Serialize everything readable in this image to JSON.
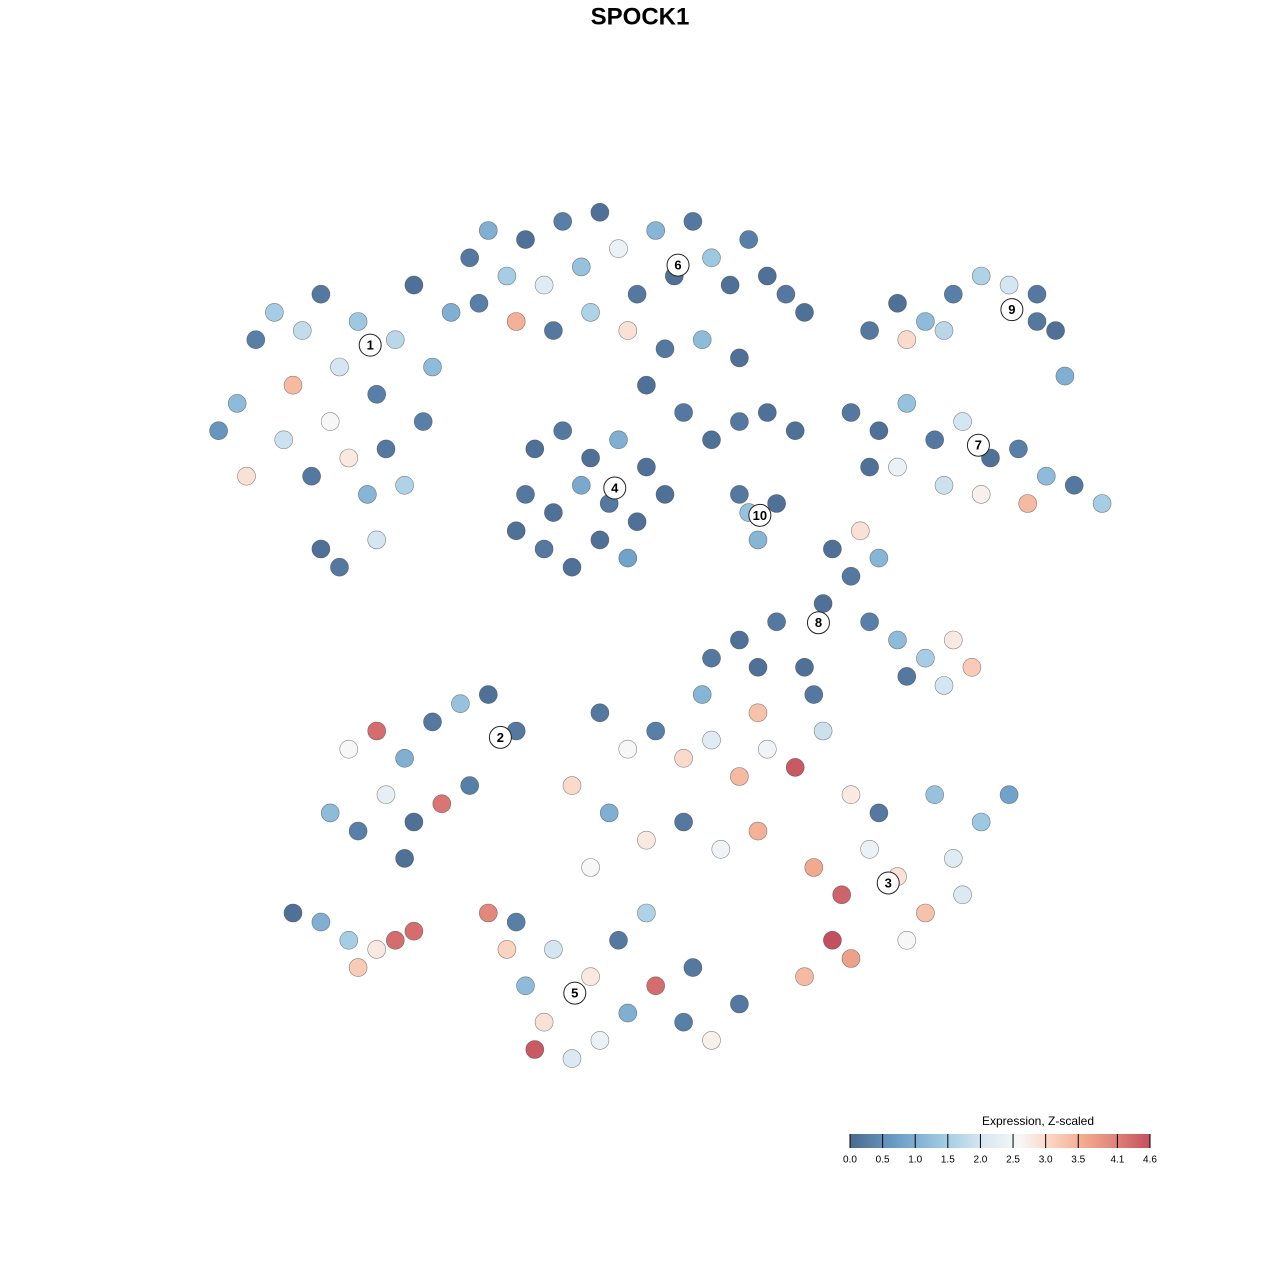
{
  "chart_data": {
    "type": "scatter",
    "title": "SPOCK1",
    "xlim": [
      0,
      100
    ],
    "ylim": [
      0,
      100
    ],
    "x": [
      4,
      2,
      6,
      8,
      11,
      13,
      15,
      17,
      19,
      21,
      23,
      25,
      14,
      16,
      18,
      12,
      20,
      22,
      13,
      15,
      19,
      10,
      27,
      24,
      9,
      5,
      29,
      31,
      33,
      35,
      37,
      39,
      41,
      43,
      45,
      47,
      49,
      51,
      53,
      55,
      57,
      59,
      61,
      63,
      65,
      30,
      34,
      38,
      42,
      46,
      50,
      54,
      58,
      48,
      52,
      36,
      39,
      42,
      45,
      48,
      35,
      38,
      41,
      44,
      47,
      37,
      40,
      43,
      46,
      50,
      34,
      55,
      58,
      61,
      64,
      58,
      60,
      62,
      59,
      72,
      75,
      78,
      81,
      84,
      87,
      90,
      92,
      93,
      90,
      76,
      80,
      70,
      73,
      76,
      79,
      82,
      85,
      88,
      91,
      94,
      97,
      75,
      80,
      84,
      89,
      72,
      68,
      70,
      67,
      62,
      58,
      72,
      75,
      78,
      81,
      83,
      80,
      76,
      71,
      73,
      60,
      55,
      65,
      16,
      19,
      22,
      25,
      28,
      31,
      34,
      14,
      17,
      20,
      23,
      26,
      22,
      29,
      10,
      13,
      16,
      19,
      21,
      23,
      17,
      43,
      46,
      49,
      52,
      55,
      58,
      61,
      64,
      67,
      70,
      40,
      44,
      48,
      52,
      56,
      60,
      54,
      60,
      66,
      42,
      66,
      69,
      72,
      75,
      78,
      81,
      84,
      87,
      79,
      73,
      68,
      65,
      70,
      76,
      82,
      31,
      33,
      35,
      37,
      40,
      43,
      46,
      49,
      52,
      55,
      58,
      38,
      42,
      45,
      48,
      36,
      53,
      34
    ],
    "y": [
      76,
      73,
      83,
      86,
      84,
      88,
      80,
      85,
      77,
      83,
      89,
      80,
      74,
      70,
      66,
      68,
      71,
      67,
      60,
      58,
      61,
      78,
      86,
      74,
      72,
      68,
      92,
      95,
      90,
      94,
      89,
      96,
      91,
      97,
      93,
      88,
      95,
      90,
      96,
      92,
      89,
      94,
      90,
      88,
      86,
      87,
      85,
      84,
      86,
      84,
      82,
      83,
      81,
      78,
      75,
      71,
      73,
      70,
      72,
      69,
      66,
      64,
      67,
      65,
      63,
      60,
      58,
      61,
      59,
      66,
      62,
      72,
      74,
      75,
      73,
      66,
      61,
      65,
      64,
      84,
      87,
      85,
      88,
      90,
      89,
      88,
      84,
      79,
      85,
      83,
      84,
      75,
      73,
      76,
      72,
      74,
      70,
      71,
      68,
      67,
      65,
      69,
      67,
      66,
      65,
      69,
      60,
      57,
      54,
      52,
      50,
      52,
      50,
      48,
      50,
      47,
      45,
      46,
      62,
      59,
      47,
      48,
      47,
      38,
      40,
      37,
      41,
      43,
      44,
      40,
      31,
      29,
      33,
      30,
      32,
      26,
      34,
      20,
      19,
      17,
      16,
      17,
      18,
      14,
      42,
      38,
      40,
      37,
      39,
      35,
      38,
      36,
      40,
      33,
      34,
      31,
      28,
      30,
      27,
      29,
      44,
      42,
      44,
      25,
      25,
      22,
      27,
      24,
      20,
      26,
      30,
      33,
      33,
      31,
      17,
      13,
      15,
      17,
      22,
      20,
      16,
      12,
      8,
      4,
      6,
      9,
      12,
      8,
      6,
      10,
      16,
      13,
      17,
      20,
      5,
      14,
      19
    ],
    "values": [
      1.2,
      0.6,
      0.3,
      1.5,
      1.8,
      0.2,
      2.0,
      1.4,
      0.3,
      1.7,
      0.1,
      1.2,
      2.6,
      2.8,
      1.1,
      0.2,
      0.2,
      1.6,
      0.1,
      0.2,
      2.0,
      3.4,
      1.0,
      0.3,
      1.9,
      2.9,
      0.2,
      1.0,
      1.5,
      0.1,
      2.2,
      0.3,
      1.3,
      0.1,
      2.4,
      0.2,
      1.1,
      0.1,
      0.2,
      1.4,
      0.1,
      0.3,
      0.1,
      0.2,
      0.1,
      0.3,
      3.5,
      0.2,
      1.6,
      2.9,
      0.2,
      1.2,
      0.1,
      0.1,
      0.2,
      0.1,
      0.2,
      0.1,
      1.0,
      0.1,
      0.2,
      0.1,
      0.9,
      0.2,
      0.1,
      0.2,
      0.1,
      0.1,
      0.8,
      0.1,
      0.1,
      0.1,
      0.2,
      0.1,
      0.1,
      0.2,
      1.1,
      0.1,
      1.3,
      0.2,
      0.1,
      1.2,
      0.3,
      1.6,
      2.0,
      0.2,
      0.1,
      1.0,
      0.2,
      3.0,
      1.7,
      0.2,
      0.1,
      1.3,
      0.2,
      2.0,
      0.1,
      0.3,
      1.2,
      0.2,
      1.5,
      2.4,
      1.9,
      2.7,
      3.4,
      0.1,
      0.1,
      0.2,
      0.1,
      0.2,
      0.1,
      0.3,
      1.2,
      1.5,
      2.8,
      3.2,
      2.0,
      0.2,
      2.9,
      1.1,
      0.1,
      0.2,
      0.1,
      2.6,
      4.3,
      1.0,
      0.2,
      1.3,
      0.1,
      0.2,
      1.2,
      0.3,
      2.3,
      0.1,
      4.2,
      0.1,
      0.3,
      0.1,
      1.0,
      1.5,
      2.8,
      4.3,
      4.3,
      3.2,
      0.2,
      2.6,
      0.3,
      3.0,
      2.2,
      3.4,
      2.5,
      4.5,
      1.9,
      2.8,
      3.0,
      1.0,
      2.8,
      0.2,
      2.5,
      3.5,
      1.1,
      3.3,
      0.2,
      2.6,
      3.6,
      4.4,
      2.4,
      2.9,
      3.3,
      2.2,
      1.4,
      0.8,
      1.3,
      0.2,
      4.6,
      3.4,
      3.7,
      2.6,
      2.1,
      4.0,
      3.1,
      1.2,
      2.9,
      2.1,
      2.4,
      1.0,
      4.3,
      0.3,
      2.7,
      0.2,
      2.0,
      2.8,
      0.2,
      1.6,
      4.5,
      0.2,
      0.3
    ],
    "cluster_labels": [
      {
        "text": "1",
        "x": 18.3,
        "y": 82.4
      },
      {
        "text": "2",
        "x": 32.3,
        "y": 39.3
      },
      {
        "text": "3",
        "x": 74.0,
        "y": 23.3
      },
      {
        "text": "4",
        "x": 44.6,
        "y": 66.7
      },
      {
        "text": "5",
        "x": 40.3,
        "y": 11.2
      },
      {
        "text": "6",
        "x": 51.4,
        "y": 91.2
      },
      {
        "text": "7",
        "x": 83.7,
        "y": 71.4
      },
      {
        "text": "8",
        "x": 66.5,
        "y": 51.9
      },
      {
        "text": "9",
        "x": 87.3,
        "y": 86.3
      },
      {
        "text": "10",
        "x": 60.2,
        "y": 63.7
      }
    ],
    "colorbar_title": "Expression, Z-scaled",
    "clim": [
      0,
      4.6
    ],
    "colorscale": [
      [
        0,
        "#4b6a8f"
      ],
      [
        0.7,
        "#6a9cc6"
      ],
      [
        1.4,
        "#9dc8e1"
      ],
      [
        2.0,
        "#d4e6f1"
      ],
      [
        2.6,
        "#f7f7f7"
      ],
      [
        3.1,
        "#fbd3c0"
      ],
      [
        3.6,
        "#f2a98e"
      ],
      [
        4.1,
        "#de8078"
      ],
      [
        4.6,
        "#c4505f"
      ]
    ],
    "cticks": [
      {
        "value": 0,
        "label": "0.0"
      },
      0.5,
      {
        "value": 1,
        "label": "1.0"
      },
      1.5,
      {
        "value": 2,
        "label": "2.0"
      },
      2.5,
      {
        "value": 3,
        "label": "3.0"
      },
      3.5,
      4.1,
      4.6
    ]
  }
}
